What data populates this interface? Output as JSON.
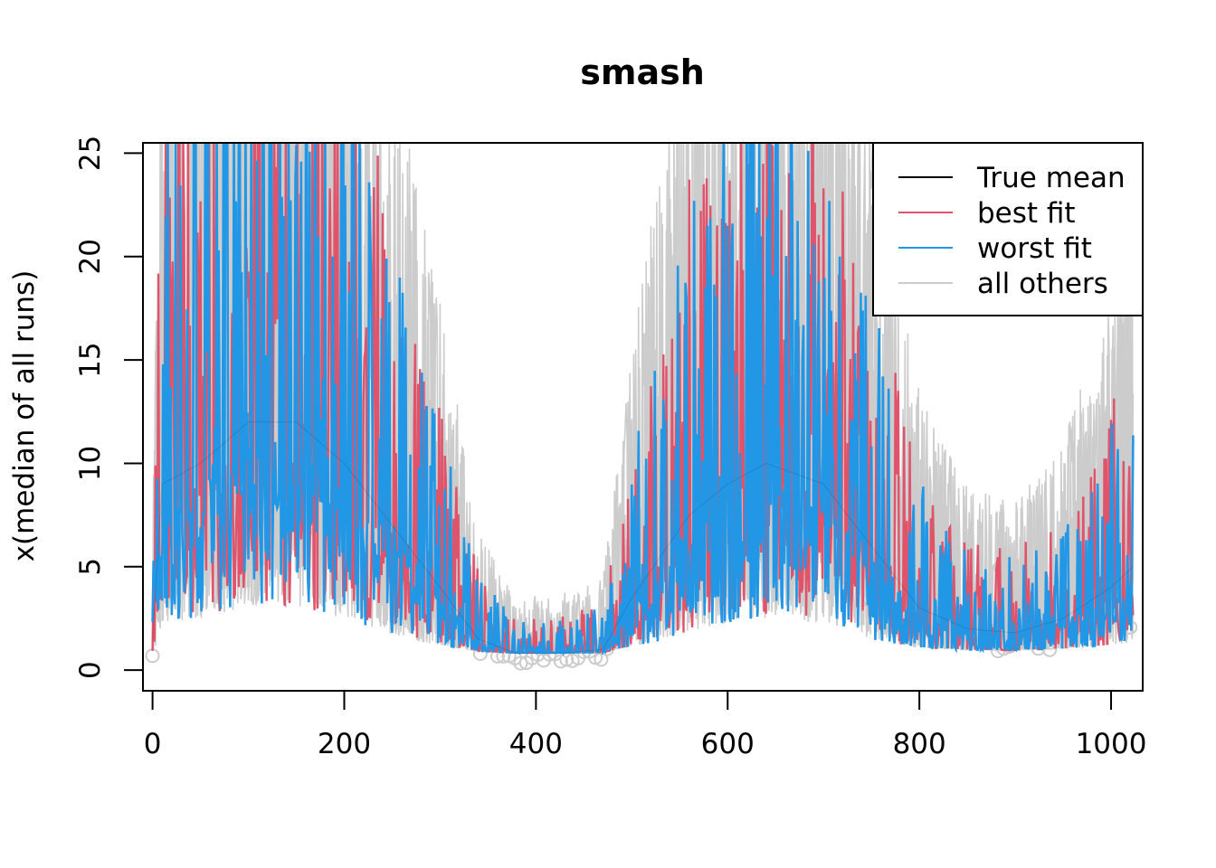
{
  "chart_data": {
    "type": "line",
    "title": "smash",
    "xlabel": "",
    "ylabel": "x(median of all runs)",
    "xlim": [
      -10,
      1033
    ],
    "ylim": [
      -1,
      25.5
    ],
    "x_ticks": [
      0,
      200,
      400,
      600,
      800,
      1000
    ],
    "y_ticks": [
      0,
      5,
      10,
      15,
      20,
      25
    ],
    "grid": false,
    "n_points": 1024,
    "legend": {
      "position": "top-right",
      "entries": [
        {
          "label": "True mean",
          "color": "#000000"
        },
        {
          "label": "best fit",
          "color": "#DF536B"
        },
        {
          "label": "worst fit",
          "color": "#2297E6"
        },
        {
          "label": "all others",
          "color": "#CCCCCC"
        }
      ]
    },
    "true_mean_profile": {
      "x": [
        0,
        10,
        50,
        100,
        150,
        200,
        250,
        300,
        340,
        380,
        420,
        470,
        500,
        560,
        600,
        640,
        700,
        750,
        800,
        850,
        900,
        950,
        1000,
        1023
      ],
      "y": [
        1.5,
        9,
        10,
        12,
        12,
        10,
        7,
        4,
        1.5,
        0.8,
        0.8,
        1.0,
        3.5,
        7.5,
        9,
        10,
        9,
        6,
        3,
        2,
        1.8,
        2.5,
        4,
        5
      ]
    },
    "series": [
      {
        "name": "all others",
        "color": "#CCCCCC",
        "role": "others"
      },
      {
        "name": "best fit",
        "color": "#DF536B",
        "role": "best"
      },
      {
        "name": "worst fit",
        "color": "#2297E6",
        "role": "worst"
      },
      {
        "name": "True mean",
        "color": "#000000",
        "role": "mean"
      }
    ],
    "observed_points_color": "#CCCCCC"
  }
}
